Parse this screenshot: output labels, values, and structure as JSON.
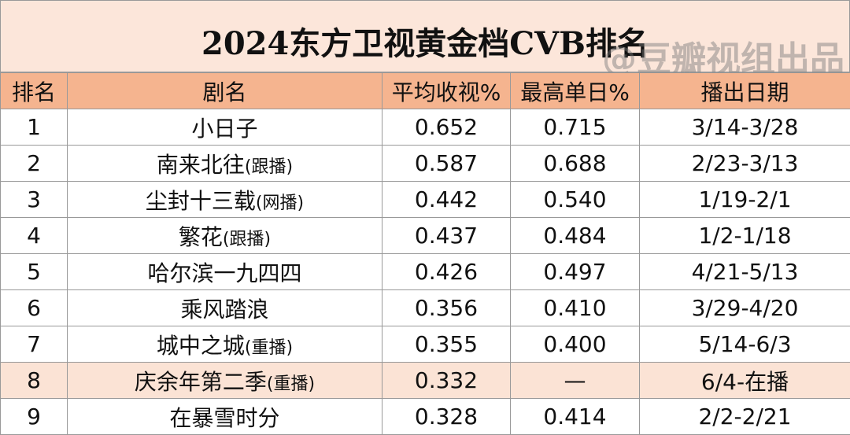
{
  "header": {
    "title": "2024东方卫视黄金档CVB排名",
    "watermark": "@豆瓣视组出品"
  },
  "table": {
    "columns": [
      "排名",
      "剧名",
      "平均收视%",
      "最高单日%",
      "播出日期"
    ],
    "highlight_row": 7,
    "rows": [
      {
        "rank": "1",
        "name": "小日子",
        "avg": "0.652",
        "peak": "0.715",
        "dates": "3/14-3/28"
      },
      {
        "rank": "2",
        "name": "南来北往",
        "tag": "(跟播)",
        "avg": "0.587",
        "peak": "0.688",
        "dates": "2/23-3/13"
      },
      {
        "rank": "3",
        "name": "尘封十三载",
        "tag": "(网播)",
        "avg": "0.442",
        "peak": "0.540",
        "dates": "1/19-2/1"
      },
      {
        "rank": "4",
        "name": "繁花",
        "tag": "(跟播)",
        "avg": "0.437",
        "peak": "0.484",
        "dates": "1/2-1/18"
      },
      {
        "rank": "5",
        "name": "哈尔滨一九四四",
        "avg": "0.426",
        "peak": "0.497",
        "dates": "4/21-5/13"
      },
      {
        "rank": "6",
        "name": "乘风踏浪",
        "avg": "0.356",
        "peak": "0.410",
        "dates": "3/29-4/20"
      },
      {
        "rank": "7",
        "name": "城中之城",
        "tag": "(重播)",
        "avg": "0.355",
        "peak": "0.400",
        "dates": "5/14-6/3"
      },
      {
        "rank": "8",
        "name": "庆余年第二季",
        "tag": "(重播)",
        "avg": "0.332",
        "peak": "—",
        "dates": "6/4-在播"
      },
      {
        "rank": "9",
        "name": "在暴雪时分",
        "avg": "0.328",
        "peak": "0.414",
        "dates": "2/2-2/21"
      }
    ]
  }
}
